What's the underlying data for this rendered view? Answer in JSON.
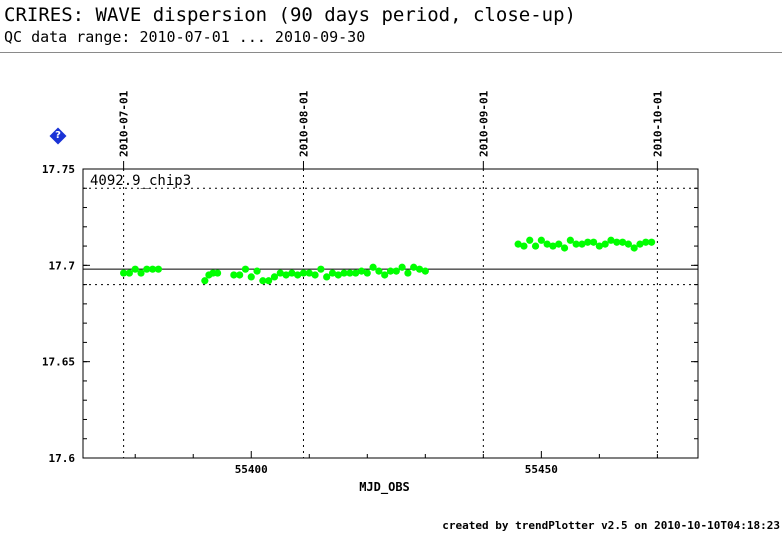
{
  "header": {
    "title": "CRIRES: WAVE dispersion (90 days period, close-up)",
    "subtitle": "QC data range: 2010-07-01 ... 2010-09-30"
  },
  "help_icon": {
    "name": "help-icon",
    "glyph": "?",
    "color": "#1a33d6"
  },
  "footer": {
    "text": "created by trendPlotter v2.5 on 2010-10-10T04:18:23"
  },
  "chart_data": {
    "type": "scatter",
    "xlabel": "MJD_OBS",
    "ylabel": "",
    "xlim": [
      55371,
      55477
    ],
    "ylim": [
      17.6,
      17.75
    ],
    "x_ticks": [
      55400,
      55450
    ],
    "y_ticks": [
      17.6,
      17.65,
      17.7,
      17.75
    ],
    "y_tick_labels": [
      "17.6",
      "17.65",
      "17.7",
      "17.75"
    ],
    "date_ticks": [
      {
        "label": "2010-07-01",
        "x": 55378
      },
      {
        "label": "2010-08-01",
        "x": 55409
      },
      {
        "label": "2010-09-01",
        "x": 55440
      },
      {
        "label": "2010-10-01",
        "x": 55470
      }
    ],
    "panel_label": "4092.9_chip3",
    "reference_lines": {
      "mean": 17.698,
      "upper": 17.74,
      "lower": 17.69
    },
    "grid": false,
    "marker_color": "#00ff00",
    "series": [
      {
        "points": [
          [
            55378.0,
            17.696
          ],
          [
            55379.0,
            17.696
          ],
          [
            55380.0,
            17.698
          ],
          [
            55381.0,
            17.696
          ],
          [
            55382.0,
            17.698
          ],
          [
            55383.0,
            17.698
          ],
          [
            55384.0,
            17.698
          ],
          [
            55392.0,
            17.692
          ],
          [
            55392.7,
            17.695
          ],
          [
            55393.4,
            17.696
          ],
          [
            55394.2,
            17.696
          ],
          [
            55397.0,
            17.695
          ],
          [
            55398.0,
            17.695
          ],
          [
            55399.0,
            17.698
          ],
          [
            55400.0,
            17.694
          ],
          [
            55401.0,
            17.697
          ],
          [
            55402.0,
            17.692
          ],
          [
            55403.0,
            17.692
          ],
          [
            55404.0,
            17.694
          ],
          [
            55405.0,
            17.696
          ],
          [
            55406.0,
            17.695
          ],
          [
            55407.0,
            17.696
          ],
          [
            55408.0,
            17.695
          ],
          [
            55409.0,
            17.696
          ],
          [
            55410.0,
            17.696
          ],
          [
            55411.0,
            17.695
          ],
          [
            55412.0,
            17.698
          ],
          [
            55413.0,
            17.694
          ],
          [
            55414.0,
            17.696
          ],
          [
            55415.0,
            17.695
          ],
          [
            55416.0,
            17.696
          ],
          [
            55417.0,
            17.696
          ],
          [
            55418.0,
            17.696
          ],
          [
            55419.0,
            17.697
          ],
          [
            55420.0,
            17.696
          ],
          [
            55421.0,
            17.699
          ],
          [
            55422.0,
            17.697
          ],
          [
            55423.0,
            17.695
          ],
          [
            55424.0,
            17.697
          ],
          [
            55425.0,
            17.697
          ],
          [
            55426.0,
            17.699
          ],
          [
            55427.0,
            17.696
          ],
          [
            55428.0,
            17.699
          ],
          [
            55429.0,
            17.698
          ],
          [
            55430.0,
            17.697
          ],
          [
            55446.0,
            17.711
          ],
          [
            55447.0,
            17.71
          ],
          [
            55448.0,
            17.713
          ],
          [
            55449.0,
            17.71
          ],
          [
            55450.0,
            17.713
          ],
          [
            55451.0,
            17.711
          ],
          [
            55452.0,
            17.71
          ],
          [
            55453.0,
            17.711
          ],
          [
            55454.0,
            17.709
          ],
          [
            55455.0,
            17.713
          ],
          [
            55456.0,
            17.711
          ],
          [
            55457.0,
            17.711
          ],
          [
            55458.0,
            17.712
          ],
          [
            55459.0,
            17.712
          ],
          [
            55460.0,
            17.71
          ],
          [
            55461.0,
            17.711
          ],
          [
            55462.0,
            17.713
          ],
          [
            55463.0,
            17.712
          ],
          [
            55464.0,
            17.712
          ],
          [
            55465.0,
            17.711
          ],
          [
            55466.0,
            17.709
          ],
          [
            55467.0,
            17.711
          ],
          [
            55468.0,
            17.712
          ],
          [
            55469.0,
            17.712
          ]
        ]
      }
    ]
  }
}
